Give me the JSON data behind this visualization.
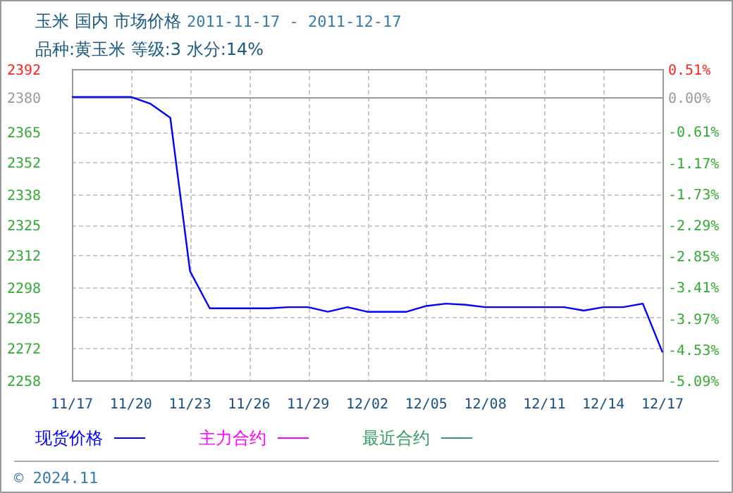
{
  "chart_data": {
    "type": "line",
    "title": "玉米 国内 市场价格 2011-11-17 - 2011-12-17",
    "subtitle": "品种:黄玉米 等级:3 水分:14%",
    "x": [
      "2011-11-17",
      "2011-11-20",
      "2011-11-21",
      "2011-11-22",
      "2011-11-23",
      "2011-11-24",
      "2011-11-25",
      "2011-11-27",
      "2011-11-28",
      "2011-11-29",
      "2011-11-30",
      "2011-12-01",
      "2011-12-02",
      "2011-12-03",
      "2011-12-04",
      "2011-12-05",
      "2011-12-06",
      "2011-12-07",
      "2011-12-08",
      "2011-12-12",
      "2011-12-13",
      "2011-12-14",
      "2011-12-15",
      "2011-12-16",
      "2011-12-17"
    ],
    "series": [
      {
        "name": "现货价格",
        "color": "#0000ff",
        "values": [
          2380,
          2380,
          2377,
          2371,
          2305,
          2289,
          2289,
          2289,
          2289.5,
          2289.5,
          2287.5,
          2289.5,
          2287.5,
          2287.5,
          2287.5,
          2290,
          2291,
          2290.5,
          2289.5,
          2289.5,
          2288,
          2289.5,
          2289.5,
          2291,
          2270
        ]
      },
      {
        "name": "主力合约",
        "color": "#ff00ff",
        "values": [
          null,
          null,
          null,
          null,
          null,
          null,
          null,
          null,
          null,
          null,
          null,
          null,
          null,
          null,
          null,
          null,
          null,
          null,
          null,
          null,
          null,
          null,
          null,
          null,
          null
        ]
      },
      {
        "name": "最近合约",
        "color": "#339966",
        "values": [
          null,
          null,
          null,
          null,
          null,
          null,
          null,
          null,
          null,
          null,
          null,
          null,
          null,
          null,
          null,
          null,
          null,
          null,
          null,
          null,
          null,
          null,
          null,
          null,
          null
        ]
      }
    ],
    "xlim": [
      "2011-11-17",
      "2011-12-17"
    ],
    "xticks": [
      {
        "value": "2011-11-17",
        "label": "11/17"
      },
      {
        "value": "2011-11-20",
        "label": "11/20"
      },
      {
        "value": "2011-11-23",
        "label": "11/23"
      },
      {
        "value": "2011-11-26",
        "label": "11/26"
      },
      {
        "value": "2011-11-29",
        "label": "11/29"
      },
      {
        "value": "2011-12-02",
        "label": "12/02"
      },
      {
        "value": "2011-12-05",
        "label": "12/05"
      },
      {
        "value": "2011-12-08",
        "label": "12/08"
      },
      {
        "value": "2011-12-11",
        "label": "12/11"
      },
      {
        "value": "2011-12-14",
        "label": "12/14"
      },
      {
        "value": "2011-12-17",
        "label": "12/17"
      }
    ],
    "ylim": [
      2258,
      2392
    ],
    "yticks": [
      2392,
      2380,
      2365,
      2352,
      2338,
      2325,
      2312,
      2298,
      2285,
      2272,
      2258
    ],
    "y2lim": [
      -5.09,
      0.51
    ],
    "y2ticks": [
      {
        "value": 0.51,
        "label": "0.51%"
      },
      {
        "value": 0,
        "label": "0.00%"
      },
      {
        "value": -0.61,
        "label": "-0.61%"
      },
      {
        "value": -1.17,
        "label": "-1.17%"
      },
      {
        "value": -1.73,
        "label": "-1.73%"
      },
      {
        "value": -2.29,
        "label": "-2.29%"
      },
      {
        "value": -2.85,
        "label": "-2.85%"
      },
      {
        "value": -3.41,
        "label": "-3.41%"
      },
      {
        "value": -3.97,
        "label": "-3.97%"
      },
      {
        "value": -4.53,
        "label": "-4.53%"
      },
      {
        "value": -5.09,
        "label": "-5.09%"
      }
    ],
    "ref_lines": [
      {
        "axis": "y2",
        "value": 0,
        "color": "#999999"
      }
    ],
    "grid": true,
    "legend": "bottom",
    "annotations": [
      "© 2024.11"
    ]
  }
}
